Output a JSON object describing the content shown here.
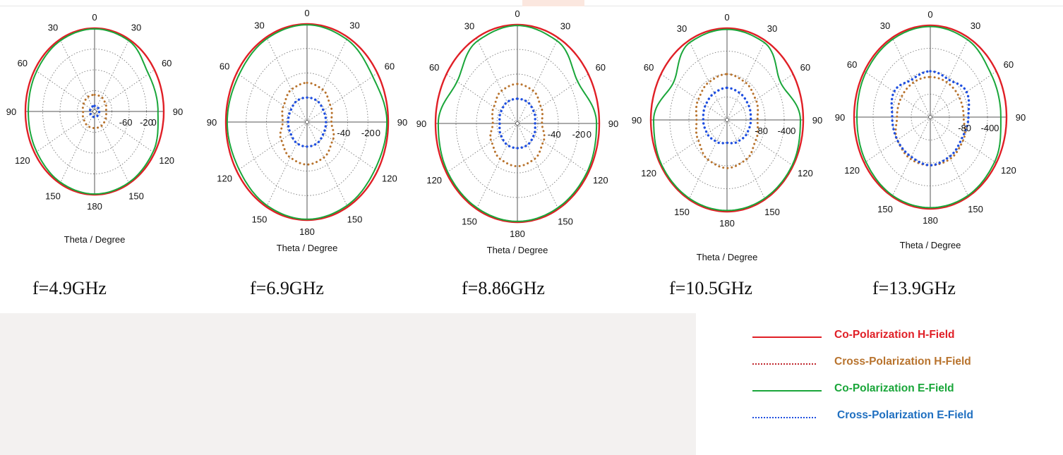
{
  "colors": {
    "co_h": "#e01f26",
    "cross_h": "#b8732d",
    "co_e": "#1aa63a",
    "cross_e": "#1f4fe0",
    "cross_h_legend_line": "#c0272d"
  },
  "legend": [
    {
      "name": "Co-Polarization H-Field",
      "style": "solid",
      "color": "#e01f26"
    },
    {
      "name": "Cross-Polarization H-Field",
      "style": "dotted",
      "color": "#b8732d"
    },
    {
      "name": "Co-Polarization E-Field",
      "style": "solid",
      "color": "#1aa63a"
    },
    {
      "name": "Cross-Polarization E-Field",
      "style": "dotted",
      "color": "#1f4fe0"
    }
  ],
  "chart_data": [
    {
      "type": "polar",
      "frequency_label": "f=4.9GHz",
      "xlabel": "Theta / Degree",
      "angle_ticks": [
        "0",
        "30",
        "60",
        "90",
        "120",
        "150",
        "180",
        "150",
        "120",
        "90",
        "60",
        "30"
      ],
      "radial_tick_labels": [
        "-60",
        "-20",
        "0"
      ],
      "rlim": [
        -60,
        0
      ],
      "grid": true,
      "series": [
        {
          "name": "Co-Polarization H-Field",
          "theta_deg": [
            0,
            30,
            60,
            90,
            120,
            150,
            180,
            210,
            240,
            270,
            300,
            330
          ],
          "gain_db": [
            0,
            0,
            0,
            0,
            0,
            0,
            0,
            0,
            0,
            0,
            0,
            0
          ]
        },
        {
          "name": "Co-Polarization E-Field",
          "theta_deg": [
            0,
            30,
            60,
            90,
            120,
            150,
            180,
            210,
            240,
            270,
            300,
            330
          ],
          "gain_db": [
            -0.5,
            -1,
            -6,
            -5,
            -1.5,
            -0.8,
            -0.5,
            -1,
            -2,
            -2.5,
            -2,
            -1
          ]
        },
        {
          "name": "Cross-Polarization H-Field",
          "theta_deg": [
            0,
            30,
            60,
            90,
            120,
            150,
            180,
            210,
            240,
            270,
            300,
            330
          ],
          "gain_db": [
            -48,
            -48,
            -49,
            -50,
            -49,
            -48,
            -48,
            -48,
            -49,
            -50,
            -49,
            -48
          ]
        },
        {
          "name": "Cross-Polarization E-Field",
          "theta_deg": [
            0,
            30,
            60,
            90,
            120,
            150,
            180,
            210,
            240,
            270,
            300,
            330
          ],
          "gain_db": [
            -56,
            -56,
            -56,
            -56,
            -56,
            -56,
            -56,
            -56,
            -56,
            -56,
            -56,
            -56
          ]
        }
      ]
    },
    {
      "type": "polar",
      "frequency_label": "f=6.9GHz",
      "xlabel": "Theta / Degree",
      "angle_ticks": [
        "0",
        "30",
        "60",
        "90",
        "120",
        "150",
        "180",
        "150",
        "120",
        "90",
        "60",
        "30"
      ],
      "radial_tick_labels": [
        "-40",
        "-20",
        "0"
      ],
      "rlim": [
        -60,
        0
      ],
      "grid": true,
      "series": [
        {
          "name": "Co-Polarization H-Field",
          "theta_deg": [
            0,
            30,
            60,
            90,
            120,
            150,
            180,
            210,
            240,
            270,
            300,
            330
          ],
          "gain_db": [
            0,
            0,
            0,
            0,
            0,
            0,
            0,
            0,
            0,
            0,
            0,
            0
          ]
        },
        {
          "name": "Co-Polarization E-Field",
          "theta_deg": [
            0,
            30,
            60,
            90,
            120,
            150,
            180,
            210,
            240,
            270,
            300,
            330
          ],
          "gain_db": [
            -0.5,
            -1.5,
            -4,
            -1,
            -2,
            -1,
            -0.5,
            -1,
            -2,
            -1,
            -2,
            -1
          ]
        },
        {
          "name": "Cross-Polarization H-Field",
          "theta_deg": [
            0,
            30,
            60,
            90,
            120,
            150,
            180,
            210,
            240,
            270,
            300,
            330
          ],
          "gain_db": [
            -36,
            -37,
            -40,
            -42,
            -38,
            -35,
            -34,
            -35,
            -38,
            -42,
            -40,
            -37
          ]
        },
        {
          "name": "Cross-Polarization E-Field",
          "theta_deg": [
            0,
            30,
            60,
            90,
            120,
            150,
            180,
            210,
            240,
            270,
            300,
            330
          ],
          "gain_db": [
            -45,
            -45,
            -46,
            -46,
            -46,
            -45,
            -45,
            -45,
            -46,
            -46,
            -46,
            -45
          ]
        }
      ]
    },
    {
      "type": "polar",
      "frequency_label": "f=8.86GHz",
      "xlabel": "Theta / Degree",
      "angle_ticks": [
        "0",
        "30",
        "60",
        "90",
        "120",
        "150",
        "180",
        "150",
        "120",
        "90",
        "60",
        "30"
      ],
      "radial_tick_labels": [
        "-40",
        "-20",
        "0"
      ],
      "rlim": [
        -60,
        0
      ],
      "grid": true,
      "series": [
        {
          "name": "Co-Polarization H-Field",
          "theta_deg": [
            0,
            30,
            60,
            90,
            120,
            150,
            180,
            210,
            240,
            270,
            300,
            330
          ],
          "gain_db": [
            0,
            0,
            0,
            0,
            0,
            0,
            0,
            0,
            0,
            0,
            0,
            0
          ]
        },
        {
          "name": "Co-Polarization E-Field",
          "theta_deg": [
            0,
            30,
            60,
            90,
            120,
            150,
            180,
            210,
            240,
            270,
            300,
            330
          ],
          "gain_db": [
            -0.5,
            -2,
            -9,
            -2,
            -1,
            -0.8,
            -0.5,
            -0.8,
            -1,
            -2,
            -9,
            -2
          ]
        },
        {
          "name": "Cross-Polarization H-Field",
          "theta_deg": [
            0,
            30,
            60,
            90,
            120,
            150,
            180,
            210,
            240,
            270,
            300,
            330
          ],
          "gain_db": [
            -36,
            -37,
            -40,
            -42,
            -38,
            -35,
            -34,
            -35,
            -38,
            -42,
            -40,
            -37
          ]
        },
        {
          "name": "Cross-Polarization E-Field",
          "theta_deg": [
            0,
            30,
            60,
            90,
            120,
            150,
            180,
            210,
            240,
            270,
            300,
            330
          ],
          "gain_db": [
            -45,
            -45,
            -46,
            -47,
            -46,
            -45,
            -45,
            -45,
            -46,
            -47,
            -46,
            -45
          ]
        }
      ]
    },
    {
      "type": "polar",
      "frequency_label": "f=10.5GHz",
      "xlabel": "Theta / Degree",
      "angle_ticks": [
        "0",
        "30",
        "60",
        "90",
        "120",
        "150",
        "180",
        "150",
        "120",
        "90",
        "60",
        "30"
      ],
      "radial_tick_labels": [
        "-80",
        "-40",
        "0"
      ],
      "rlim": [
        -80,
        0
      ],
      "grid": true,
      "series": [
        {
          "name": "Co-Polarization H-Field",
          "theta_deg": [
            0,
            30,
            60,
            90,
            120,
            150,
            180,
            210,
            240,
            270,
            300,
            330
          ],
          "gain_db": [
            0,
            0,
            0,
            0,
            0,
            0,
            0,
            0,
            0,
            0,
            0,
            0
          ]
        },
        {
          "name": "Co-Polarization E-Field",
          "theta_deg": [
            0,
            30,
            60,
            90,
            120,
            150,
            180,
            210,
            240,
            270,
            300,
            330
          ],
          "gain_db": [
            -1,
            -2,
            -15,
            -3,
            -1,
            -1,
            -1,
            -1,
            -1,
            -3,
            -15,
            -2
          ]
        },
        {
          "name": "Cross-Polarization H-Field",
          "theta_deg": [
            0,
            30,
            60,
            90,
            120,
            150,
            180,
            210,
            240,
            270,
            300,
            330
          ],
          "gain_db": [
            -40,
            -42,
            -45,
            -48,
            -45,
            -40,
            -38,
            -40,
            -45,
            -48,
            -45,
            -42
          ]
        },
        {
          "name": "Cross-Polarization E-Field",
          "theta_deg": [
            0,
            30,
            60,
            90,
            120,
            150,
            180,
            210,
            240,
            270,
            300,
            330
          ],
          "gain_db": [
            -52,
            -53,
            -54,
            -55,
            -56,
            -58,
            -60,
            -58,
            -56,
            -55,
            -54,
            -53
          ]
        }
      ]
    },
    {
      "type": "polar",
      "frequency_label": "f=13.9GHz",
      "xlabel": "Theta / Degree",
      "angle_ticks": [
        "0",
        "30",
        "60",
        "90",
        "120",
        "150",
        "180",
        "150",
        "120",
        "90",
        "60",
        "30"
      ],
      "radial_tick_labels": [
        "-80",
        "-40",
        "0"
      ],
      "rlim": [
        -80,
        0
      ],
      "grid": true,
      "series": [
        {
          "name": "Co-Polarization H-Field",
          "theta_deg": [
            0,
            30,
            60,
            90,
            120,
            150,
            180,
            210,
            240,
            270,
            300,
            330
          ],
          "gain_db": [
            0,
            0,
            0,
            0,
            0,
            0,
            0,
            0,
            0,
            0,
            0,
            0
          ]
        },
        {
          "name": "Co-Polarization E-Field",
          "theta_deg": [
            0,
            30,
            60,
            90,
            120,
            150,
            180,
            210,
            240,
            270,
            300,
            330
          ],
          "gain_db": [
            -1,
            -2,
            -6,
            -6,
            -2,
            -1,
            -1,
            -1,
            -2,
            -3,
            -2,
            -1.5
          ]
        },
        {
          "name": "Cross-Polarization H-Field",
          "theta_deg": [
            0,
            30,
            60,
            90,
            120,
            150,
            180,
            210,
            240,
            270,
            300,
            330
          ],
          "gain_db": [
            -45,
            -45,
            -45,
            -45,
            -40,
            -38,
            -38,
            -38,
            -40,
            -45,
            -45,
            -45
          ]
        },
        {
          "name": "Cross-Polarization E-Field",
          "theta_deg": [
            0,
            30,
            60,
            90,
            120,
            150,
            180,
            210,
            240,
            270,
            300,
            330
          ],
          "gain_db": [
            -40,
            -42,
            -36,
            -40,
            -42,
            -40,
            -38,
            -40,
            -40,
            -40,
            -36,
            -42
          ]
        }
      ]
    }
  ]
}
